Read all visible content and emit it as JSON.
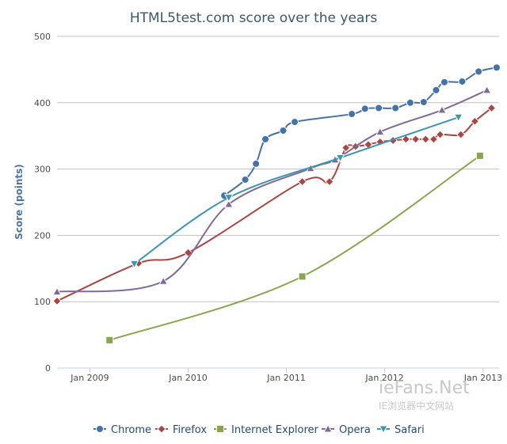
{
  "chart_data": {
    "type": "line",
    "title": "HTML5test.com score over the years",
    "ylabel": "Score (points)",
    "xlabel": "",
    "ylim": [
      0,
      500
    ],
    "yticks": [
      0,
      100,
      200,
      300,
      400,
      500
    ],
    "xlim": [
      "2008-09-01",
      "2013-03-01"
    ],
    "xticks": [
      {
        "date": "2009-01-01",
        "label": "Jan 2009"
      },
      {
        "date": "2010-01-01",
        "label": "Jan 2010"
      },
      {
        "date": "2011-01-01",
        "label": "Jan 2011"
      },
      {
        "date": "2012-01-01",
        "label": "Jan 2012"
      },
      {
        "date": "2013-01-01",
        "label": "Jan 2013"
      }
    ],
    "grid": true,
    "legend_position": "bottom",
    "series": [
      {
        "name": "Chrome",
        "color": "#4572A7",
        "marker": "circle",
        "points": [
          [
            "2010-05-15",
            260
          ],
          [
            "2010-08-01",
            284
          ],
          [
            "2010-09-10",
            308
          ],
          [
            "2010-10-15",
            345
          ],
          [
            "2010-12-20",
            358
          ],
          [
            "2011-02-01",
            371
          ],
          [
            "2011-09-01",
            383
          ],
          [
            "2011-10-20",
            391
          ],
          [
            "2011-12-10",
            392
          ],
          [
            "2012-02-10",
            392
          ],
          [
            "2012-04-05",
            400
          ],
          [
            "2012-05-25",
            401
          ],
          [
            "2012-07-10",
            419
          ],
          [
            "2012-08-10",
            431
          ],
          [
            "2012-10-15",
            432
          ],
          [
            "2012-12-15",
            447
          ],
          [
            "2013-02-20",
            453
          ]
        ]
      },
      {
        "name": "Firefox",
        "color": "#AA4643",
        "marker": "diamond",
        "points": [
          [
            "2008-09-01",
            101
          ],
          [
            "2009-07-01",
            158
          ],
          [
            "2010-01-01",
            174
          ],
          [
            "2011-03-01",
            281
          ],
          [
            "2011-06-10",
            281
          ],
          [
            "2011-08-10",
            332
          ],
          [
            "2011-09-15",
            334
          ],
          [
            "2011-11-01",
            337
          ],
          [
            "2011-12-15",
            341
          ],
          [
            "2012-02-01",
            343
          ],
          [
            "2012-03-20",
            345
          ],
          [
            "2012-04-25",
            345
          ],
          [
            "2012-06-01",
            345
          ],
          [
            "2012-07-01",
            345
          ],
          [
            "2012-07-25",
            352
          ],
          [
            "2012-10-10",
            352
          ],
          [
            "2012-12-01",
            372
          ],
          [
            "2013-02-01",
            392
          ]
        ]
      },
      {
        "name": "Internet Explorer",
        "color": "#89A54E",
        "marker": "square",
        "points": [
          [
            "2009-03-15",
            42
          ],
          [
            "2011-03-01",
            138
          ],
          [
            "2012-12-20",
            320
          ]
        ]
      },
      {
        "name": "Opera",
        "color": "#80699B",
        "marker": "triangle",
        "points": [
          [
            "2008-09-01",
            115
          ],
          [
            "2009-10-01",
            131
          ],
          [
            "2010-06-01",
            247
          ],
          [
            "2011-04-01",
            301
          ],
          [
            "2011-07-01",
            314
          ],
          [
            "2011-12-15",
            356
          ],
          [
            "2012-08-01",
            389
          ],
          [
            "2013-01-15",
            419
          ]
        ]
      },
      {
        "name": "Safari",
        "color": "#3D96AE",
        "marker": "triangle-down",
        "points": [
          [
            "2009-06-15",
            157
          ],
          [
            "2010-06-01",
            257
          ],
          [
            "2011-07-20",
            317
          ],
          [
            "2012-10-01",
            378
          ]
        ]
      }
    ]
  },
  "watermark": {
    "logo_text": "ieFans.Net",
    "subtitle_text": "IE浏览器中文网站"
  }
}
